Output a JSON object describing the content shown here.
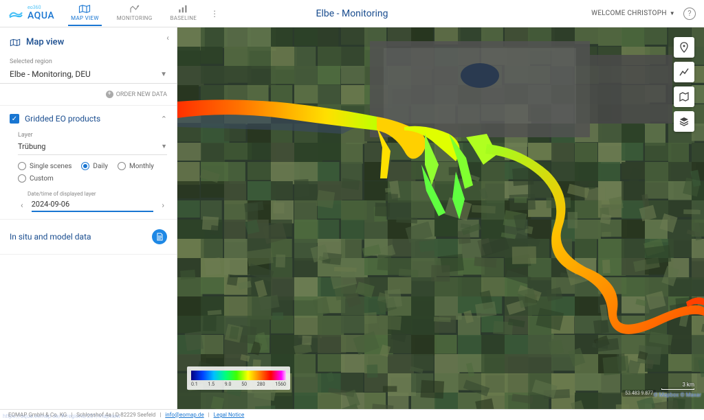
{
  "brand": {
    "name": "AQUA",
    "prefix": "eo360"
  },
  "nav": {
    "tabs": [
      {
        "id": "map-view",
        "label": "MAP VIEW",
        "active": true
      },
      {
        "id": "monitoring",
        "label": "MONITORING",
        "active": false
      },
      {
        "id": "baseline",
        "label": "BASELINE",
        "active": false
      }
    ]
  },
  "header": {
    "title": "Elbe - Monitoring",
    "welcome": "WELCOME CHRISTOPH"
  },
  "sidebar": {
    "panel_title": "Map view",
    "region_label": "Selected region",
    "region_value": "Elbe - Monitoring, DEU",
    "order_new": "ORDER NEW DATA",
    "gridded": {
      "title": "Gridded EO products",
      "checked": true,
      "layer_label": "Layer",
      "layer_value": "Trübung",
      "time_options": [
        {
          "label": "Single scenes",
          "selected": false
        },
        {
          "label": "Daily",
          "selected": true
        },
        {
          "label": "Monthly",
          "selected": false
        },
        {
          "label": "Custom",
          "selected": false
        }
      ],
      "date_label": "Date/time of displayed layer",
      "date_value": "2024-09-06"
    },
    "insitu_title": "In situ and model data"
  },
  "map": {
    "background_color": "#2b3a2c",
    "land_patches": [
      "#3a5a38",
      "#4e6a3e",
      "#2d4228",
      "#5a6e44",
      "#6a7a4d",
      "#414f36",
      "#34462e",
      "#516640",
      "#3e5534",
      "#485f3a",
      "#2f3f29",
      "#5e724a",
      "#374a30",
      "#44593a",
      "#6c7c52",
      "#28361f"
    ],
    "urban_color": "#5a5a5a",
    "water_color": "#3a4a60",
    "river_gradient": [
      "#ff2000",
      "#ff5000",
      "#ff8000",
      "#ffb000",
      "#ffe000",
      "#d0ff00",
      "#90ff20",
      "#50ff40"
    ],
    "colorbar": {
      "ticks": [
        "0.1",
        "1.5",
        "9.0",
        "50",
        "280",
        "1560"
      ],
      "gradient_stops": [
        {
          "c": "#000080",
          "p": 0
        },
        {
          "c": "#0040ff",
          "p": 12
        },
        {
          "c": "#00c0ff",
          "p": 24
        },
        {
          "c": "#00ff80",
          "p": 36
        },
        {
          "c": "#40ff00",
          "p": 48
        },
        {
          "c": "#ffff00",
          "p": 60
        },
        {
          "c": "#ff8000",
          "p": 72
        },
        {
          "c": "#ff0000",
          "p": 84
        },
        {
          "c": "#ff00ff",
          "p": 95
        },
        {
          "c": "#ffc0ff",
          "p": 100
        }
      ]
    },
    "scale_label": "3 km",
    "attribution": "© Mapbox © Maxar",
    "coords": "53.483  9.877"
  },
  "footer": {
    "company": "EOMAP GmbH & Co. KG",
    "address": "Schlosshof 4a | D-82229 Seefeld",
    "email": "info@eomap.de",
    "legal": "Legal Notice"
  },
  "colors": {
    "primary": "#1976d2",
    "header_text": "#1a4d8f"
  }
}
